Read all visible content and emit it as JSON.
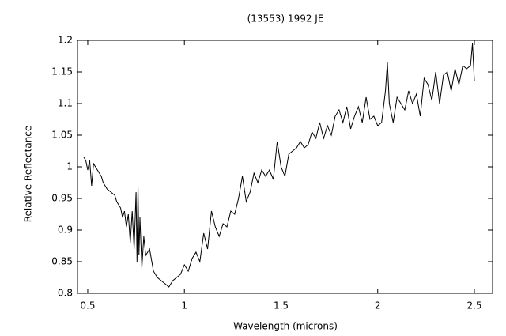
{
  "chart_data": {
    "type": "line",
    "title": "(13553) 1992 JE",
    "xlabel": "Wavelength (microns)",
    "ylabel": "Relative Reflectance",
    "color": "#000000",
    "xlim": [
      0.447,
      2.594
    ],
    "ylim": [
      0.8,
      1.2
    ],
    "xticks": [
      0.5,
      1,
      1.5,
      2,
      2.5
    ],
    "yticks": [
      0.8,
      0.85,
      0.9,
      0.95,
      1,
      1.05,
      1.1,
      1.15,
      1.2
    ],
    "x": [
      0.48,
      0.49,
      0.5,
      0.51,
      0.52,
      0.53,
      0.54,
      0.55,
      0.56,
      0.57,
      0.58,
      0.59,
      0.6,
      0.62,
      0.64,
      0.65,
      0.66,
      0.67,
      0.68,
      0.69,
      0.7,
      0.71,
      0.72,
      0.73,
      0.74,
      0.75,
      0.755,
      0.76,
      0.765,
      0.77,
      0.78,
      0.79,
      0.8,
      0.82,
      0.84,
      0.86,
      0.88,
      0.9,
      0.92,
      0.94,
      0.96,
      0.98,
      1.0,
      1.02,
      1.04,
      1.06,
      1.08,
      1.1,
      1.12,
      1.14,
      1.16,
      1.18,
      1.2,
      1.22,
      1.24,
      1.26,
      1.28,
      1.3,
      1.32,
      1.34,
      1.36,
      1.38,
      1.4,
      1.42,
      1.44,
      1.46,
      1.48,
      1.5,
      1.52,
      1.54,
      1.56,
      1.58,
      1.6,
      1.62,
      1.64,
      1.66,
      1.68,
      1.7,
      1.72,
      1.74,
      1.76,
      1.78,
      1.8,
      1.82,
      1.84,
      1.86,
      1.88,
      1.9,
      1.92,
      1.94,
      1.96,
      1.98,
      2.0,
      2.02,
      2.04,
      2.05,
      2.06,
      2.08,
      2.1,
      2.12,
      2.14,
      2.16,
      2.18,
      2.2,
      2.22,
      2.24,
      2.26,
      2.28,
      2.3,
      2.32,
      2.34,
      2.36,
      2.38,
      2.4,
      2.42,
      2.44,
      2.46,
      2.48,
      2.49,
      2.5
    ],
    "values": [
      1.015,
      1.01,
      0.995,
      1.01,
      0.97,
      1.005,
      1.0,
      0.995,
      0.99,
      0.985,
      0.975,
      0.97,
      0.965,
      0.96,
      0.955,
      0.945,
      0.94,
      0.935,
      0.92,
      0.93,
      0.905,
      0.925,
      0.88,
      0.93,
      0.87,
      0.96,
      0.85,
      0.97,
      0.86,
      0.92,
      0.84,
      0.89,
      0.86,
      0.87,
      0.835,
      0.825,
      0.82,
      0.815,
      0.81,
      0.82,
      0.825,
      0.83,
      0.845,
      0.835,
      0.855,
      0.865,
      0.85,
      0.895,
      0.87,
      0.93,
      0.905,
      0.89,
      0.91,
      0.905,
      0.93,
      0.925,
      0.95,
      0.985,
      0.945,
      0.96,
      0.99,
      0.975,
      0.995,
      0.985,
      0.995,
      0.98,
      1.04,
      1.0,
      0.985,
      1.02,
      1.025,
      1.03,
      1.04,
      1.03,
      1.035,
      1.055,
      1.045,
      1.07,
      1.045,
      1.065,
      1.05,
      1.08,
      1.09,
      1.07,
      1.095,
      1.06,
      1.08,
      1.095,
      1.07,
      1.11,
      1.075,
      1.08,
      1.065,
      1.07,
      1.12,
      1.165,
      1.1,
      1.07,
      1.11,
      1.1,
      1.09,
      1.12,
      1.1,
      1.115,
      1.08,
      1.14,
      1.13,
      1.105,
      1.15,
      1.1,
      1.145,
      1.15,
      1.12,
      1.155,
      1.13,
      1.16,
      1.155,
      1.16,
      1.195,
      1.135
    ]
  }
}
